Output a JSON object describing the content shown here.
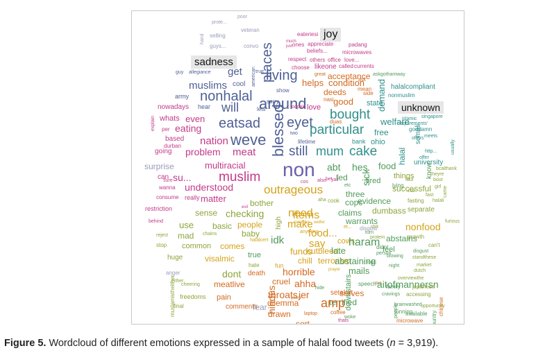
{
  "wordcloud": {
    "colors": {
      "gray": "#9a9ab8",
      "purple": "#6b5fa8",
      "slate": "#4e5f95",
      "blue": "#3d6c96",
      "teal": "#2e8f8a",
      "green": "#4f9a58",
      "olive": "#8ca43a",
      "gold": "#d4a218",
      "orange": "#d2691e",
      "red": "#d33a4e",
      "pink": "#c23a8a",
      "mauve": "#b05fa3"
    },
    "emotion_labels": [
      "joy",
      "sadness",
      "unknown",
      "surprise",
      "disgust",
      "anger",
      "fear"
    ],
    "words": [
      {
        "t": "poor",
        "c": "gray"
      },
      {
        "t": "prote...",
        "c": "gray"
      },
      {
        "t": "veteran",
        "c": "gray"
      },
      {
        "t": "selling",
        "c": "gray"
      },
      {
        "t": "hand",
        "c": "gray"
      },
      {
        "t": "guys...",
        "c": "gray"
      },
      {
        "t": "convo",
        "c": "gray"
      },
      {
        "t": "joy",
        "c": "gray"
      },
      {
        "t": "eateriesi",
        "c": "pink"
      },
      {
        "t": "much",
        "c": "pink"
      },
      {
        "t": "just",
        "c": "pink"
      },
      {
        "t": "ones",
        "c": "pink"
      },
      {
        "t": "appreciate",
        "c": "pink"
      },
      {
        "t": "padang",
        "c": "pink"
      },
      {
        "t": "beliefs...",
        "c": "pink"
      },
      {
        "t": "microwaves",
        "c": "pink"
      },
      {
        "t": "respect",
        "c": "pink"
      },
      {
        "t": "others",
        "c": "pink"
      },
      {
        "t": "office",
        "c": "pink"
      },
      {
        "t": "love...",
        "c": "pink"
      },
      {
        "t": "sadness",
        "c": "gray"
      },
      {
        "t": "places",
        "c": "slate"
      },
      {
        "t": "american",
        "c": "slate"
      },
      {
        "t": "choose",
        "c": "pink"
      },
      {
        "t": "like",
        "c": "pink"
      },
      {
        "t": "one",
        "c": "pink"
      },
      {
        "t": "called",
        "c": "pink"
      },
      {
        "t": "currents",
        "c": "pink"
      },
      {
        "t": "guy",
        "c": "slate"
      },
      {
        "t": "allegiance",
        "c": "slate"
      },
      {
        "t": "true",
        "c": "slate"
      },
      {
        "t": "get",
        "c": "slate"
      },
      {
        "t": "living",
        "c": "slate"
      },
      {
        "t": "great",
        "c": "orange"
      },
      {
        "t": "acceptance",
        "c": "orange"
      },
      {
        "t": "askgothamway",
        "c": "green"
      },
      {
        "t": "muslims",
        "c": "slate"
      },
      {
        "t": "cool",
        "c": "slate"
      },
      {
        "t": "helps",
        "c": "orange"
      },
      {
        "t": "condition",
        "c": "orange"
      },
      {
        "t": "ask",
        "c": "orange"
      },
      {
        "t": "demand",
        "c": "teal"
      },
      {
        "t": "halalcompliant",
        "c": "teal"
      },
      {
        "t": "army",
        "c": "slate"
      },
      {
        "t": "nonhalal",
        "c": "slate"
      },
      {
        "t": "show",
        "c": "slate"
      },
      {
        "t": "deeds",
        "c": "orange"
      },
      {
        "t": "mean",
        "c": "orange"
      },
      {
        "t": "side",
        "c": "orange"
      },
      {
        "t": "nonmuslim",
        "c": "teal"
      },
      {
        "t": "sorry",
        "c": "slate"
      },
      {
        "t": "around",
        "c": "slate"
      },
      {
        "t": "nasi",
        "c": "orange"
      },
      {
        "t": "good",
        "c": "orange"
      },
      {
        "t": "state",
        "c": "teal"
      },
      {
        "t": "unknown",
        "c": "gray"
      },
      {
        "t": "nowadays",
        "c": "pink"
      },
      {
        "t": "hear",
        "c": "slate"
      },
      {
        "t": "will",
        "c": "slate"
      },
      {
        "t": "lets",
        "c": "slate"
      },
      {
        "t": "foopak",
        "c": "pink"
      },
      {
        "t": "love",
        "c": "pink"
      },
      {
        "t": "bought",
        "c": "teal"
      },
      {
        "t": "whats",
        "c": "pink"
      },
      {
        "t": "even",
        "c": "pink"
      },
      {
        "t": "duas",
        "c": "orange"
      },
      {
        "t": "welfare",
        "c": "teal"
      },
      {
        "t": "islamic",
        "c": "teal"
      },
      {
        "t": "singapore",
        "c": "teal"
      },
      {
        "t": "explain",
        "c": "pink"
      },
      {
        "t": "eatsad",
        "c": "slate"
      },
      {
        "t": "eyet",
        "c": "slate"
      },
      {
        "t": "requirements'",
        "c": "teal"
      },
      {
        "t": "per",
        "c": "pink"
      },
      {
        "t": "eating",
        "c": "pink"
      },
      {
        "t": "particular",
        "c": "teal"
      },
      {
        "t": "free",
        "c": "teal"
      },
      {
        "t": "goddamn",
        "c": "teal"
      },
      {
        "t": "based",
        "c": "pink"
      },
      {
        "t": "nation",
        "c": "pink"
      },
      {
        "t": "weve",
        "c": "slate"
      },
      {
        "t": "two",
        "c": "slate"
      },
      {
        "t": "somali",
        "c": "teal"
      },
      {
        "t": "offers",
        "c": "teal"
      },
      {
        "t": "meets",
        "c": "teal"
      },
      {
        "t": "durban",
        "c": "pink"
      },
      {
        "t": "blessed",
        "c": "slate"
      },
      {
        "t": "lifetime",
        "c": "slate"
      },
      {
        "t": "bank",
        "c": "teal"
      },
      {
        "t": "ohio",
        "c": "teal"
      },
      {
        "t": "usually",
        "c": "teal"
      },
      {
        "t": "going",
        "c": "pink"
      },
      {
        "t": "problem",
        "c": "pink"
      },
      {
        "t": "still",
        "c": "slate"
      },
      {
        "t": "mum",
        "c": "teal"
      },
      {
        "t": "cake",
        "c": "teal"
      },
      {
        "t": "halal",
        "c": "teal"
      },
      {
        "t": "http...",
        "c": "teal"
      },
      {
        "t": "meat",
        "c": "pink"
      },
      {
        "t": "offer",
        "c": "teal"
      },
      {
        "t": "university",
        "c": "teal"
      },
      {
        "t": "surprise",
        "c": "gray"
      },
      {
        "t": "multiracial",
        "c": "pink"
      },
      {
        "t": "non",
        "c": "purple"
      },
      {
        "t": "abt",
        "c": "green"
      },
      {
        "t": "sick",
        "c": "green"
      },
      {
        "t": "hes",
        "c": "green"
      },
      {
        "t": "food",
        "c": "green"
      },
      {
        "t": "know",
        "c": "green"
      },
      {
        "t": "bcalthank",
        "c": "olive"
      },
      {
        "t": "can",
        "c": "pink"
      },
      {
        "t": "su...",
        "c": "pink"
      },
      {
        "t": "muslim",
        "c": "pink"
      },
      {
        "t": "things",
        "c": "olive"
      },
      {
        "t": "foul",
        "c": "olive"
      },
      {
        "t": "theyre",
        "c": "olive"
      },
      {
        "t": "sure",
        "c": "pink"
      },
      {
        "t": "cos",
        "c": "pink"
      },
      {
        "t": "also",
        "c": "pink"
      },
      {
        "t": "bet",
        "c": "pink"
      },
      {
        "t": "yall",
        "c": "pink"
      },
      {
        "t": "fed",
        "c": "green"
      },
      {
        "t": "tired",
        "c": "green"
      },
      {
        "t": "bout",
        "c": "olive"
      },
      {
        "t": "wanna",
        "c": "pink"
      },
      {
        "t": "understood",
        "c": "pink"
      },
      {
        "t": "outrageous",
        "c": "gold"
      },
      {
        "t": "etc",
        "c": "green"
      },
      {
        "t": "lying",
        "c": "green"
      },
      {
        "t": "successful",
        "c": "olive"
      },
      {
        "t": "girl",
        "c": "olive"
      },
      {
        "t": "consume",
        "c": "pink"
      },
      {
        "t": "really",
        "c": "pink"
      },
      {
        "t": "matter",
        "c": "pink"
      },
      {
        "t": "three",
        "c": "green"
      },
      {
        "t": "cuz",
        "c": "olive"
      },
      {
        "t": "fast",
        "c": "olive"
      },
      {
        "t": "came",
        "c": "olive"
      },
      {
        "t": "bother",
        "c": "olive"
      },
      {
        "t": "aha",
        "c": "olive"
      },
      {
        "t": "cook",
        "c": "olive"
      },
      {
        "t": "cops",
        "c": "green"
      },
      {
        "t": "evidence",
        "c": "green"
      },
      {
        "t": "fasting",
        "c": "olive"
      },
      {
        "t": "halali",
        "c": "olive"
      },
      {
        "t": "restriction",
        "c": "pink"
      },
      {
        "t": "evil",
        "c": "pink"
      },
      {
        "t": "need",
        "c": "gold"
      },
      {
        "t": "items",
        "c": "gold"
      },
      {
        "t": "claims",
        "c": "green"
      },
      {
        "t": "dumbass",
        "c": "olive"
      },
      {
        "t": "separate",
        "c": "olive"
      },
      {
        "t": "sense",
        "c": "olive"
      },
      {
        "t": "checking",
        "c": "olive"
      },
      {
        "t": "high",
        "c": "olive"
      },
      {
        "t": "make",
        "c": "gold"
      },
      {
        "t": "warrants",
        "c": "green"
      },
      {
        "t": "behind",
        "c": "pink"
      },
      {
        "t": "colombo",
        "c": "gold"
      },
      {
        "t": "welfer",
        "c": "gold"
      },
      {
        "t": "et...",
        "c": "gold"
      },
      {
        "t": "shit",
        "c": "olive"
      },
      {
        "t": "furious",
        "c": "olive"
      },
      {
        "t": "use",
        "c": "olive"
      },
      {
        "t": "basic",
        "c": "olive"
      },
      {
        "t": "people",
        "c": "gold"
      },
      {
        "t": "anything",
        "c": "gold"
      },
      {
        "t": "food...",
        "c": "gold"
      },
      {
        "t": "disgust",
        "c": "gray"
      },
      {
        "t": "nonfood",
        "c": "gold"
      },
      {
        "t": "idk",
        "c": "green"
      },
      {
        "t": "turn",
        "c": "green"
      },
      {
        "t": "protein",
        "c": "olive"
      },
      {
        "t": "reject",
        "c": "olive"
      },
      {
        "t": "mad",
        "c": "olive"
      },
      {
        "t": "chains",
        "c": "olive"
      },
      {
        "t": "baby",
        "c": "olive"
      },
      {
        "t": "halalcert",
        "c": "gold"
      },
      {
        "t": "say",
        "c": "gold"
      },
      {
        "t": "cows",
        "c": "gold"
      },
      {
        "t": "haram",
        "c": "green"
      },
      {
        "t": "abstains",
        "c": "green"
      },
      {
        "t": "growth",
        "c": "olive"
      },
      {
        "t": "stop",
        "c": "olive"
      },
      {
        "t": "common",
        "c": "olive"
      },
      {
        "t": "comes",
        "c": "gold"
      },
      {
        "t": "funds",
        "c": "gold"
      },
      {
        "t": "cutbleed",
        "c": "gold"
      },
      {
        "t": "late",
        "c": "green"
      },
      {
        "t": "didnt",
        "c": "green"
      },
      {
        "t": "person",
        "c": "green"
      },
      {
        "t": "feel",
        "c": "green"
      },
      {
        "t": "disgust",
        "c": "green"
      },
      {
        "t": "can't",
        "c": "olive"
      },
      {
        "t": "true",
        "c": "green"
      },
      {
        "t": "blowing",
        "c": "green"
      },
      {
        "t": "standthese",
        "c": "olive"
      },
      {
        "t": "huge",
        "c": "olive"
      },
      {
        "t": "visalmic",
        "c": "gold"
      },
      {
        "t": "chill",
        "c": "gold"
      },
      {
        "t": "terrorism",
        "c": "gold"
      },
      {
        "t": "abstaining",
        "c": "green"
      },
      {
        "t": "logic",
        "c": "green"
      },
      {
        "t": "night",
        "c": "green"
      },
      {
        "t": "market",
        "c": "olive"
      },
      {
        "t": "hate",
        "c": "olive"
      },
      {
        "t": "fun",
        "c": "gold"
      },
      {
        "t": "prayer",
        "c": "gold"
      },
      {
        "t": "mails",
        "c": "green"
      },
      {
        "t": "dutch",
        "c": "olive"
      },
      {
        "t": "anger",
        "c": "gray"
      },
      {
        "t": "dont",
        "c": "olive"
      },
      {
        "t": "death",
        "c": "orange"
      },
      {
        "t": "horrible",
        "c": "orange"
      },
      {
        "t": "ahha",
        "c": "orange"
      },
      {
        "t": "bro",
        "c": "orange"
      },
      {
        "t": "aitofmannersn",
        "c": "green"
      },
      {
        "t": "overviewthe",
        "c": "olive"
      },
      {
        "t": "either",
        "c": "olive"
      },
      {
        "t": "hindus",
        "c": "orange"
      },
      {
        "t": "cruel",
        "c": "orange"
      },
      {
        "t": "speech",
        "c": "green"
      },
      {
        "t": "family",
        "c": "green"
      },
      {
        "t": "japanese",
        "c": "olive"
      },
      {
        "t": "cheering",
        "c": "olive"
      },
      {
        "t": "meatlive",
        "c": "orange"
      },
      {
        "t": "throats",
        "c": "orange"
      },
      {
        "t": "jer",
        "c": "orange"
      },
      {
        "t": "setakat",
        "c": "orange"
      },
      {
        "t": "serves",
        "c": "orange"
      },
      {
        "t": "hide",
        "c": "green"
      },
      {
        "t": "cravings",
        "c": "green"
      },
      {
        "t": "accessing",
        "c": "olive"
      },
      {
        "t": "freedoms",
        "c": "olive"
      },
      {
        "t": "pain",
        "c": "orange"
      },
      {
        "t": "dilemma",
        "c": "orange"
      },
      {
        "t": "youre",
        "c": "orange"
      },
      {
        "t": "terrified",
        "c": "green"
      },
      {
        "t": "brainwashed",
        "c": "green"
      },
      {
        "t": "tunning",
        "c": "green"
      },
      {
        "t": "people",
        "c": "green"
      },
      {
        "t": "opportunity",
        "c": "olive"
      },
      {
        "t": "muslamistheither",
        "c": "olive"
      },
      {
        "t": "final",
        "c": "olive"
      },
      {
        "t": "comments",
        "c": "orange"
      },
      {
        "t": "fear",
        "c": "gray"
      },
      {
        "t": "amp",
        "c": "orange"
      },
      {
        "t": "downstairs",
        "c": "green"
      },
      {
        "t": "available",
        "c": "green"
      },
      {
        "t": "country",
        "c": "green"
      },
      {
        "t": "chinese",
        "c": "orange"
      },
      {
        "t": "drawn",
        "c": "orange"
      },
      {
        "t": "laptop",
        "c": "orange"
      },
      {
        "t": "coffee",
        "c": "orange"
      },
      {
        "t": "woke",
        "c": "green"
      },
      {
        "t": "microwave",
        "c": "orange"
      },
      {
        "t": "sort",
        "c": "orange"
      },
      {
        "t": "thats",
        "c": "pink"
      }
    ]
  },
  "caption": {
    "label": "Figure 5.",
    "text": "Wordcloud of different emotions expressed in a sample of halal food tweets (",
    "n_symbol": "n",
    "n_value": " = 3,919)."
  }
}
